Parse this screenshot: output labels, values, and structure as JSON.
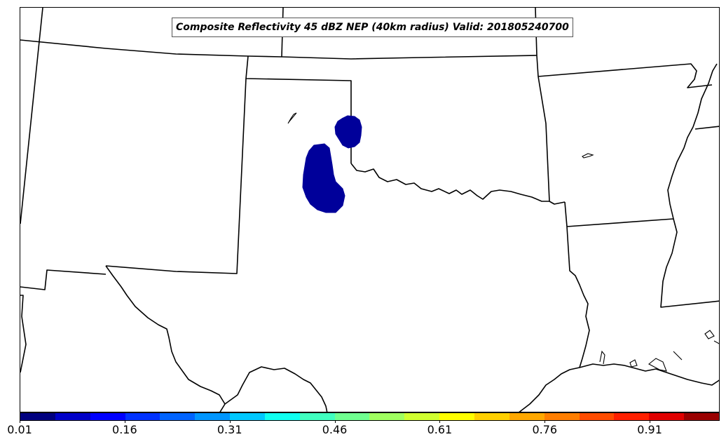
{
  "title": "Composite Reflectivity 45 dBZ NEP (40km radius) Valid: 201805240700",
  "colors": {
    "probability_fill": "#00009a",
    "boundaries": "#000000"
  },
  "colorbar": {
    "colors": [
      "#00007f",
      "#0000c8",
      "#0000ff",
      "#0032ff",
      "#0064ff",
      "#0096ff",
      "#00c8ff",
      "#10fff0",
      "#40ffc0",
      "#70ff90",
      "#a0ff60",
      "#d0ff30",
      "#ffff00",
      "#ffd000",
      "#ffa800",
      "#ff7e00",
      "#ff4c00",
      "#ff2000",
      "#e00000",
      "#9a0000"
    ],
    "ticks": [
      "0.01",
      "0.16",
      "0.31",
      "0.46",
      "0.61",
      "0.76",
      "0.91"
    ],
    "tick_values": [
      0.01,
      0.16,
      0.31,
      0.46,
      0.61,
      0.76,
      0.91
    ],
    "range": [
      0.01,
      1.01
    ]
  },
  "regions": [
    {
      "name": "probability-area-north",
      "value": 0.01
    },
    {
      "name": "probability-area-south",
      "value": 0.01
    }
  ]
}
